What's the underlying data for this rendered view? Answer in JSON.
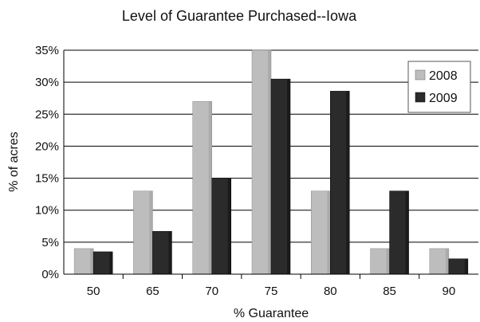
{
  "chart_data": {
    "type": "bar",
    "title": "Level of Guarantee Purchased--Iowa",
    "xlabel": "% Guarantee",
    "ylabel": "% of acres",
    "categories": [
      "50",
      "65",
      "70",
      "75",
      "80",
      "85",
      "90"
    ],
    "series": [
      {
        "name": "2008",
        "color": "#bdbdbd",
        "values": [
          4,
          13,
          27,
          35,
          13,
          4,
          4
        ]
      },
      {
        "name": "2009",
        "color": "#2b2b2b",
        "values": [
          3.5,
          6.7,
          15,
          30.5,
          28.6,
          13,
          2.4
        ]
      }
    ],
    "ylim": [
      0,
      35
    ],
    "yticks": [
      0,
      5,
      10,
      15,
      20,
      25,
      30,
      35
    ],
    "ytick_format": "%",
    "grid": true,
    "legend_position": "top-right"
  }
}
